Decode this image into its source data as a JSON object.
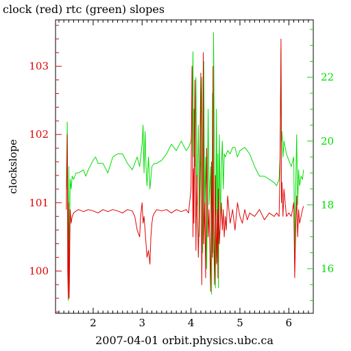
{
  "chart_data": {
    "type": "line",
    "title": "clock (red) rtc (green) slopes",
    "xlabel": "2007-04-01 orbit.physics.ubc.ca",
    "ylabel": "clockslope",
    "grid": false,
    "x_ticks": [
      2,
      3,
      4,
      5,
      6
    ],
    "x_tick_labels": [
      "2",
      "3",
      "4",
      "5",
      "6"
    ],
    "xlim": [
      1.23,
      6.5
    ],
    "y_left": {
      "lim": [
        99.38,
        103.68
      ],
      "ticks": [
        100,
        101,
        102,
        103
      ],
      "tick_labels": [
        "100",
        "101",
        "102",
        "103"
      ],
      "color": "#e00000"
    },
    "y_right": {
      "lim": [
        14.6,
        23.8
      ],
      "ticks": [
        16,
        18,
        20,
        22
      ],
      "tick_labels": [
        "16",
        "18",
        "20",
        "22"
      ],
      "color": "#00dd00"
    },
    "series": [
      {
        "name": "clock",
        "axis": "left",
        "color": "#e00000",
        "x": [
          1.45,
          1.47,
          1.48,
          1.49,
          1.5,
          1.51,
          1.52,
          1.53,
          1.55,
          1.57,
          1.6,
          1.65,
          1.7,
          1.8,
          1.9,
          2.0,
          2.1,
          2.2,
          2.3,
          2.4,
          2.5,
          2.6,
          2.7,
          2.8,
          2.85,
          2.9,
          2.95,
          2.97,
          3.0,
          3.02,
          3.04,
          3.06,
          3.08,
          3.1,
          3.13,
          3.16,
          3.18,
          3.2,
          3.22,
          3.25,
          3.3,
          3.4,
          3.5,
          3.6,
          3.7,
          3.8,
          3.9,
          3.95,
          4.0,
          4.02,
          4.04,
          4.05,
          4.06,
          4.08,
          4.1,
          4.12,
          4.15,
          4.17,
          4.2,
          4.22,
          4.24,
          4.25,
          4.26,
          4.28,
          4.3,
          4.32,
          4.35,
          4.37,
          4.4,
          4.42,
          4.44,
          4.45,
          4.46,
          4.48,
          4.5,
          4.52,
          4.54,
          4.55,
          4.56,
          4.58,
          4.6,
          4.62,
          4.64,
          4.66,
          4.68,
          4.7,
          4.72,
          4.75,
          4.8,
          4.85,
          4.9,
          4.95,
          5.0,
          5.05,
          5.1,
          5.15,
          5.2,
          5.3,
          5.4,
          5.5,
          5.6,
          5.7,
          5.75,
          5.8,
          5.82,
          5.84,
          5.85,
          5.86,
          5.88,
          5.9,
          5.95,
          6.0,
          6.05,
          6.1,
          6.12,
          6.14,
          6.16,
          6.18,
          6.2,
          6.22,
          6.25,
          6.28,
          6.3
        ],
        "values": [
          100.9,
          102.0,
          100.0,
          99.6,
          101.0,
          99.6,
          100.3,
          100.9,
          100.7,
          100.8,
          100.85,
          100.88,
          100.9,
          100.87,
          100.9,
          100.88,
          100.85,
          100.9,
          100.87,
          100.9,
          100.88,
          100.85,
          100.9,
          100.88,
          100.8,
          100.6,
          100.5,
          100.8,
          101.0,
          100.7,
          100.8,
          100.6,
          100.4,
          100.2,
          100.3,
          100.1,
          100.5,
          100.7,
          100.8,
          100.85,
          100.9,
          100.88,
          100.9,
          100.85,
          100.9,
          100.87,
          100.9,
          100.85,
          101.2,
          103.0,
          100.5,
          101.5,
          100.7,
          102.8,
          100.3,
          101.4,
          100.2,
          100.9,
          102.9,
          99.8,
          101.5,
          103.2,
          100.4,
          101.0,
          99.9,
          101.8,
          100.5,
          100.9,
          99.7,
          101.6,
          100.2,
          103.0,
          100.8,
          99.8,
          101.4,
          100.1,
          100.9,
          99.9,
          101.2,
          100.4,
          100.7,
          101.0,
          100.6,
          100.9,
          100.5,
          100.8,
          100.6,
          101.1,
          100.7,
          100.9,
          100.6,
          101.0,
          100.8,
          100.7,
          100.9,
          100.75,
          100.85,
          100.8,
          100.9,
          100.75,
          100.85,
          100.8,
          100.85,
          100.8,
          101.5,
          103.4,
          101.0,
          101.3,
          100.8,
          101.2,
          100.8,
          100.85,
          100.8,
          101.0,
          99.9,
          100.6,
          101.1,
          100.5,
          100.9,
          100.7,
          100.8,
          100.9,
          100.95
        ]
      },
      {
        "name": "rtc",
        "axis": "right",
        "color": "#00dd00",
        "x": [
          1.45,
          1.47,
          1.48,
          1.49,
          1.5,
          1.51,
          1.52,
          1.53,
          1.55,
          1.57,
          1.6,
          1.65,
          1.7,
          1.8,
          1.85,
          1.9,
          2.0,
          2.05,
          2.1,
          2.2,
          2.3,
          2.4,
          2.5,
          2.6,
          2.7,
          2.8,
          2.85,
          2.9,
          2.95,
          3.0,
          3.02,
          3.04,
          3.06,
          3.08,
          3.1,
          3.13,
          3.16,
          3.2,
          3.25,
          3.3,
          3.4,
          3.5,
          3.6,
          3.7,
          3.8,
          3.9,
          3.95,
          4.0,
          4.02,
          4.04,
          4.05,
          4.06,
          4.08,
          4.1,
          4.12,
          4.15,
          4.17,
          4.2,
          4.22,
          4.24,
          4.25,
          4.26,
          4.28,
          4.3,
          4.32,
          4.35,
          4.37,
          4.4,
          4.42,
          4.44,
          4.45,
          4.46,
          4.48,
          4.5,
          4.52,
          4.54,
          4.55,
          4.56,
          4.58,
          4.6,
          4.62,
          4.64,
          4.66,
          4.68,
          4.7,
          4.75,
          4.8,
          4.85,
          4.9,
          4.95,
          5.0,
          5.1,
          5.2,
          5.3,
          5.4,
          5.5,
          5.6,
          5.7,
          5.75,
          5.8,
          5.82,
          5.84,
          5.85,
          5.86,
          5.88,
          5.9,
          5.95,
          6.0,
          6.05,
          6.1,
          6.12,
          6.14,
          6.16,
          6.18,
          6.2,
          6.22,
          6.25,
          6.28,
          6.3
        ],
        "values": [
          18.5,
          20.6,
          18.0,
          15.0,
          19.2,
          15.2,
          17.5,
          18.8,
          18.5,
          18.9,
          18.8,
          19.0,
          19.0,
          19.1,
          18.9,
          19.1,
          19.4,
          19.5,
          19.3,
          19.3,
          19.0,
          19.5,
          19.6,
          19.6,
          19.3,
          19.1,
          19.3,
          19.5,
          19.2,
          19.9,
          20.5,
          19.0,
          20.3,
          19.2,
          18.6,
          19.5,
          18.5,
          19.2,
          19.3,
          19.3,
          19.4,
          19.6,
          19.9,
          19.7,
          20.0,
          19.7,
          19.8,
          20.0,
          20.6,
          22.8,
          19.5,
          21.0,
          19.2,
          22.0,
          18.0,
          20.5,
          17.0,
          19.8,
          22.0,
          16.5,
          20.0,
          22.5,
          17.8,
          19.5,
          16.0,
          21.0,
          18.0,
          19.2,
          15.2,
          21.5,
          16.5,
          23.4,
          19.0,
          15.4,
          21.0,
          16.2,
          19.6,
          15.4,
          20.2,
          17.5,
          19.2,
          20.0,
          18.5,
          19.6,
          19.5,
          19.7,
          19.6,
          19.8,
          19.8,
          19.5,
          19.7,
          19.8,
          19.6,
          19.2,
          18.9,
          18.9,
          18.8,
          18.7,
          18.6,
          18.8,
          19.5,
          22.9,
          20.0,
          20.3,
          19.5,
          20.0,
          19.6,
          19.4,
          19.2,
          19.5,
          16.4,
          18.5,
          20.2,
          18.0,
          19.1,
          18.6,
          18.9,
          18.8,
          19.1
        ]
      }
    ]
  }
}
